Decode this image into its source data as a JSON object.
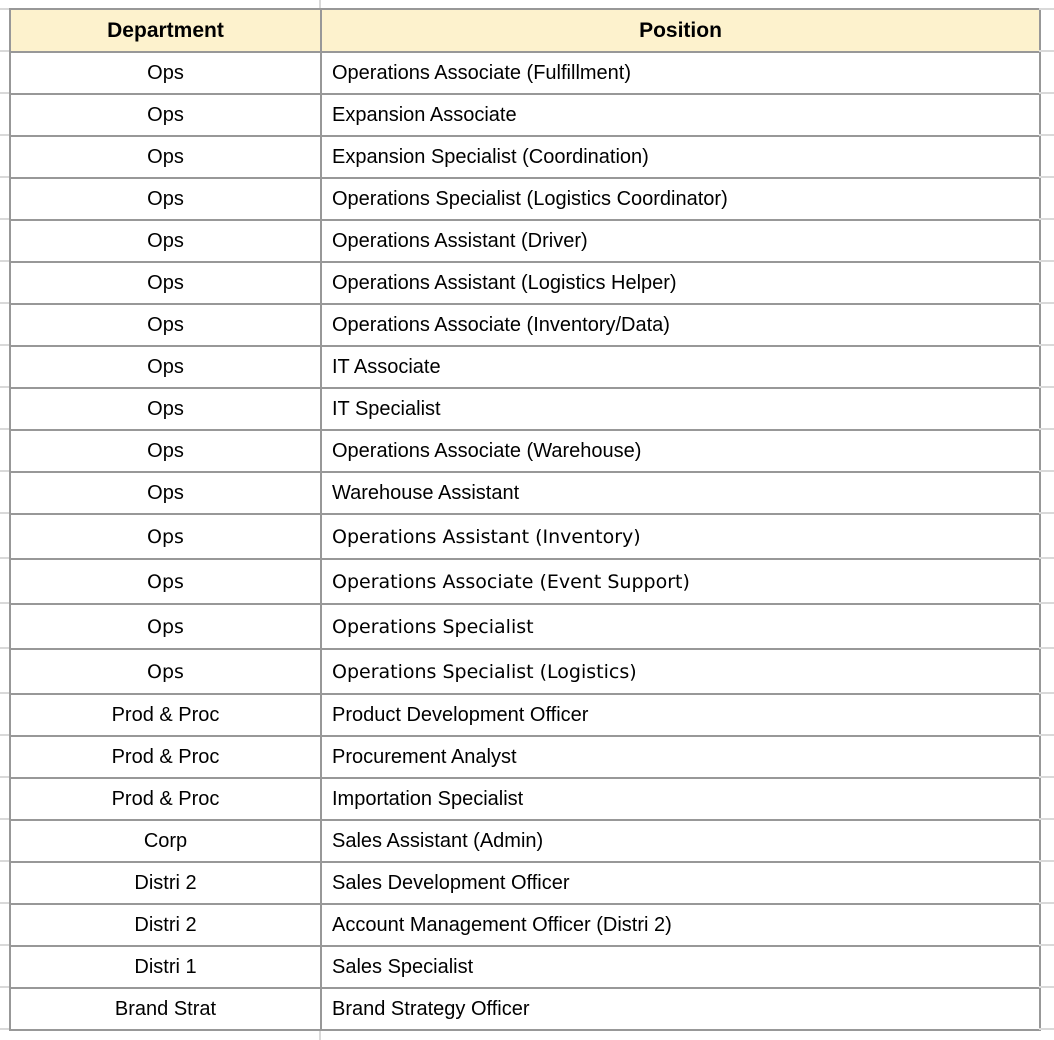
{
  "table": {
    "columns": [
      {
        "label": "Department"
      },
      {
        "label": "Position"
      }
    ],
    "rows": [
      [
        "Ops",
        "Operations Associate (Fulfillment)"
      ],
      [
        "Ops",
        "Expansion Associate"
      ],
      [
        "Ops",
        "Expansion Specialist (Coordination)"
      ],
      [
        "Ops",
        "Operations Specialist (Logistics Coordinator)"
      ],
      [
        "Ops",
        "Operations Assistant (Driver)"
      ],
      [
        "Ops",
        "Operations Assistant (Logistics Helper)"
      ],
      [
        "Ops",
        "Operations Associate (Inventory/Data)"
      ],
      [
        "Ops",
        "IT Associate"
      ],
      [
        "Ops",
        "IT Specialist"
      ],
      [
        "Ops",
        "Operations Associate (Warehouse)"
      ],
      [
        "Ops",
        "Warehouse Assistant"
      ],
      [
        "Ops",
        "Operations Assistant (Inventory)"
      ],
      [
        "Ops",
        "Operations Associate (Event Support)"
      ],
      [
        "Ops",
        "Operations Specialist"
      ],
      [
        "Ops",
        "Operations Specialist (Logistics)"
      ],
      [
        "Prod & Proc",
        "Product Development Officer"
      ],
      [
        "Prod & Proc",
        "Procurement Analyst"
      ],
      [
        "Prod & Proc",
        "Importation Specialist"
      ],
      [
        "Corp",
        "Sales Assistant (Admin)"
      ],
      [
        "Distri 2",
        "Sales Development Officer"
      ],
      [
        "Distri 2",
        "Account Management Officer (Distri 2)"
      ],
      [
        "Distri 1",
        "Sales Specialist"
      ],
      [
        "Brand Strat",
        "Brand Strategy Officer"
      ]
    ],
    "colors": {
      "header_bg": "#fdf2cd",
      "table_border": "#989898",
      "faint_gridline": "#d9d9d9",
      "text": "#000000",
      "background": "#ffffff"
    }
  }
}
